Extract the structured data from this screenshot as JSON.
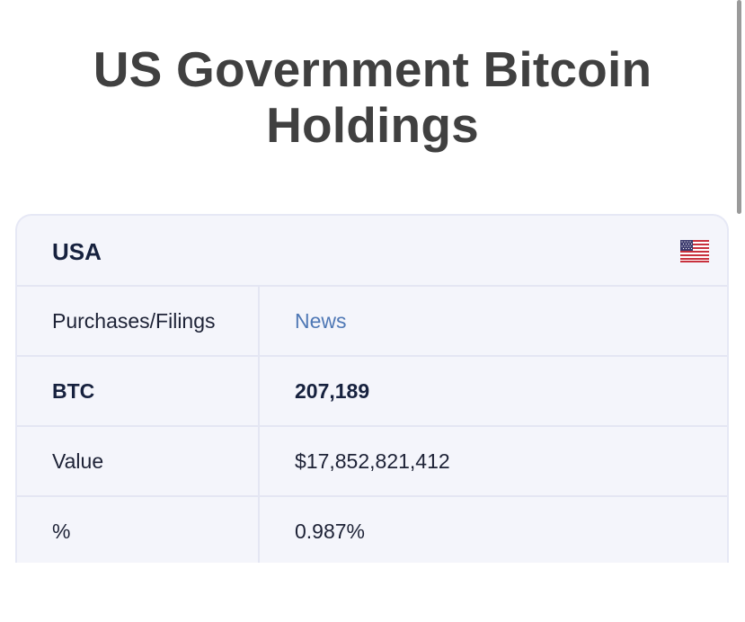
{
  "page": {
    "title": "US Government Bitcoin Holdings"
  },
  "card": {
    "country": "USA",
    "flag_icon": "us-flag-icon",
    "rows": [
      {
        "label": "Purchases/Filings",
        "value": "News"
      },
      {
        "label": "BTC",
        "value": "207,189"
      },
      {
        "label": "Value",
        "value": "$17,852,821,412"
      },
      {
        "label": "%",
        "value": "0.987%"
      }
    ]
  },
  "colors": {
    "title": "#404040",
    "card_bg": "#f4f5fb",
    "border": "#e4e6f3",
    "link": "#4f78b5",
    "text_dark": "#16213e"
  }
}
